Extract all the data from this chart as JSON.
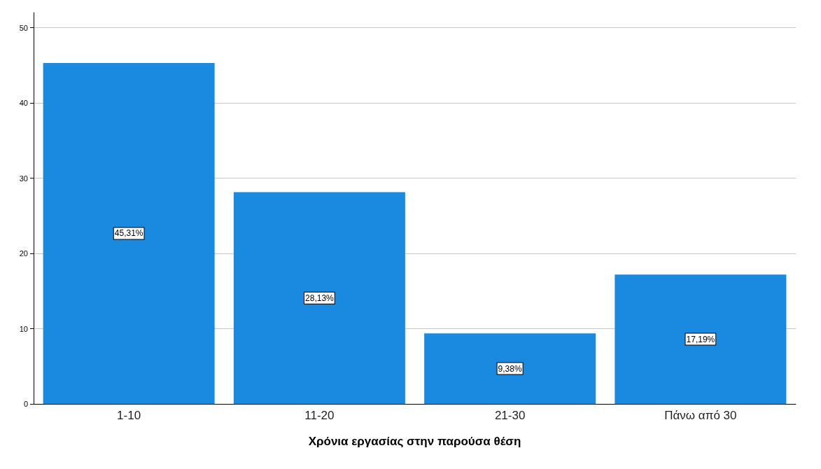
{
  "chart_data": {
    "type": "bar",
    "xlabel": "Χρόνια εργασίας στην παρούσα θέση",
    "categories": [
      "1-10",
      "11-20",
      "21-30",
      "Πάνω από 30"
    ],
    "values": [
      45.31,
      28.13,
      9.38,
      17.19
    ],
    "value_labels": [
      "45,31%",
      "28,13%",
      "9,38%",
      "17,19%"
    ],
    "color": "#1a8ae0",
    "ylim": [
      0,
      52
    ],
    "yticks": [
      0,
      10,
      20,
      30,
      40,
      50
    ],
    "grid": "y"
  }
}
